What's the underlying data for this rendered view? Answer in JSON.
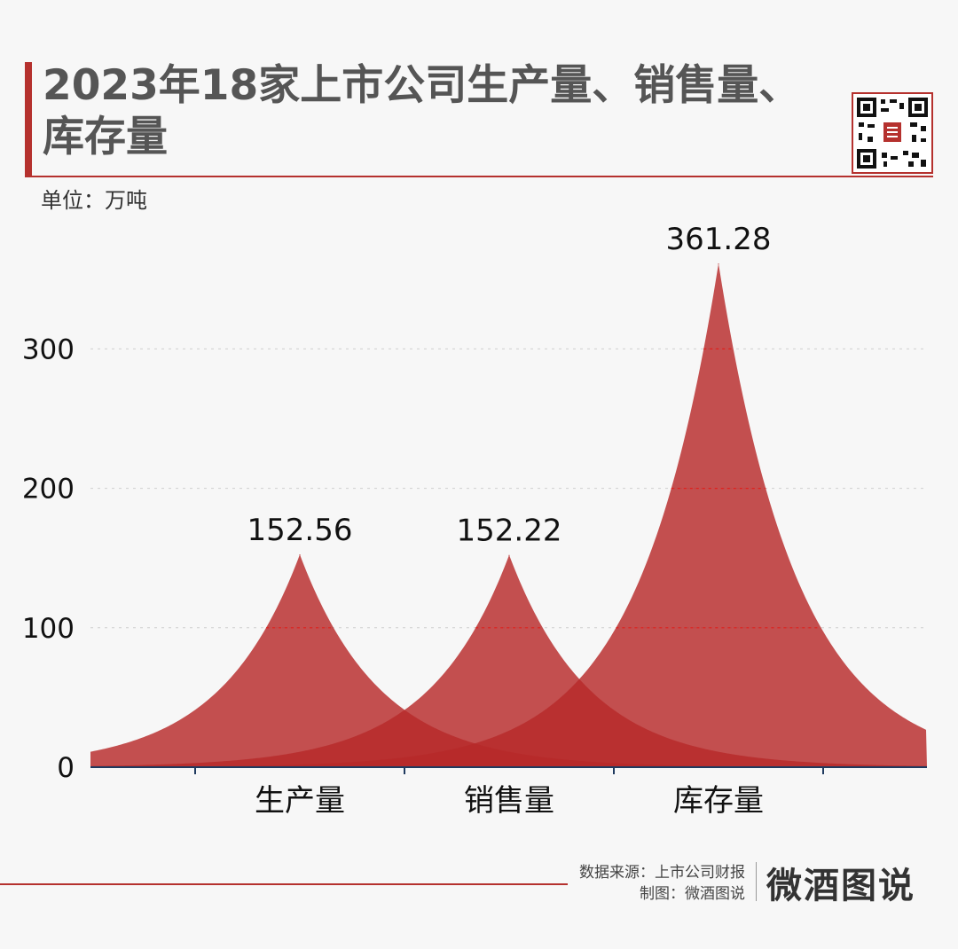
{
  "header": {
    "title": "2023年18家上市公司生产量、销售量、库存量",
    "unit": "单位：万吨"
  },
  "colors": {
    "accent": "#b5312e",
    "peak_fill": "#b7292a",
    "axis": "#1f3a5f",
    "grid": "#cfcfcf"
  },
  "icons": {
    "qr": "qr-code-icon"
  },
  "footer": {
    "source": "数据来源：上市公司财报",
    "made_by": "制图：微酒图说",
    "brand": "微酒图说"
  },
  "chart_data": {
    "type": "area",
    "title": "2023年18家上市公司生产量、销售量、库存量",
    "ylabel": "单位：万吨",
    "categories": [
      "生产量",
      "销售量",
      "库存量"
    ],
    "values": [
      152.56,
      152.22,
      361.28
    ],
    "data_labels": [
      "152.56",
      "152.22",
      "361.28"
    ],
    "yticks": [
      0,
      100,
      200,
      300
    ],
    "ylim": [
      0,
      361.28
    ],
    "grid": true
  }
}
